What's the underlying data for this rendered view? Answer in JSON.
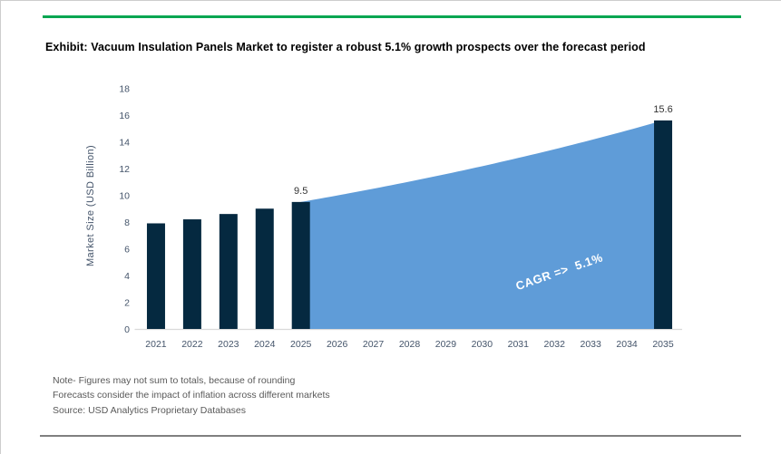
{
  "header": {
    "title": "Exhibit: Vacuum Insulation Panels Market to register a robust 5.1% growth prospects over the forecast period",
    "accent_color": "#00A651"
  },
  "chart_data": {
    "type": "bar+area combo",
    "title": "",
    "xlabel": "",
    "ylabel": "Market Size (USD Billion)",
    "ylim": [
      0,
      18
    ],
    "ytick_step": 2,
    "grid": "off",
    "legend": "none",
    "categories": [
      "2021",
      "2022",
      "2023",
      "2024",
      "2025",
      "2026",
      "2027",
      "2028",
      "2029",
      "2030",
      "2031",
      "2032",
      "2033",
      "2034",
      "2035"
    ],
    "series": [
      {
        "name": "historical-market-size",
        "type": "bar",
        "color": "#052940",
        "x": [
          "2021",
          "2022",
          "2023",
          "2024",
          "2025"
        ],
        "values": [
          7.9,
          8.2,
          8.6,
          9.0,
          9.5
        ]
      },
      {
        "name": "forecast-market-size",
        "type": "area",
        "color": "#5F9CD8",
        "x_start": "2025",
        "x_end": "2035",
        "value_start": 9.5,
        "value_end": 15.6,
        "interpolation": "exponential",
        "cagr_percent": 5.1
      },
      {
        "name": "forecast-end-bar",
        "type": "bar",
        "color": "#052940",
        "x": [
          "2035"
        ],
        "values": [
          15.6
        ]
      }
    ],
    "data_labels": [
      {
        "x": "2025",
        "text": "9.5",
        "value": 9.5
      },
      {
        "x": "2035",
        "text": "15.6",
        "value": 15.6
      }
    ],
    "annotation": {
      "text": "CAGR =>  5.1%",
      "color": "#FFFFFF",
      "rotation_deg": -19
    },
    "colors": {
      "axis_line": "#D9D9D9",
      "tick_text": "#44546A",
      "data_label_text": "#333333"
    }
  },
  "footer": {
    "note1": "Note- Figures may not sum to totals, because of rounding",
    "note2": "Forecasts consider the impact of inflation across different markets",
    "note3": "Source: USD Analytics Proprietary Databases",
    "divider_color": "#808080"
  }
}
